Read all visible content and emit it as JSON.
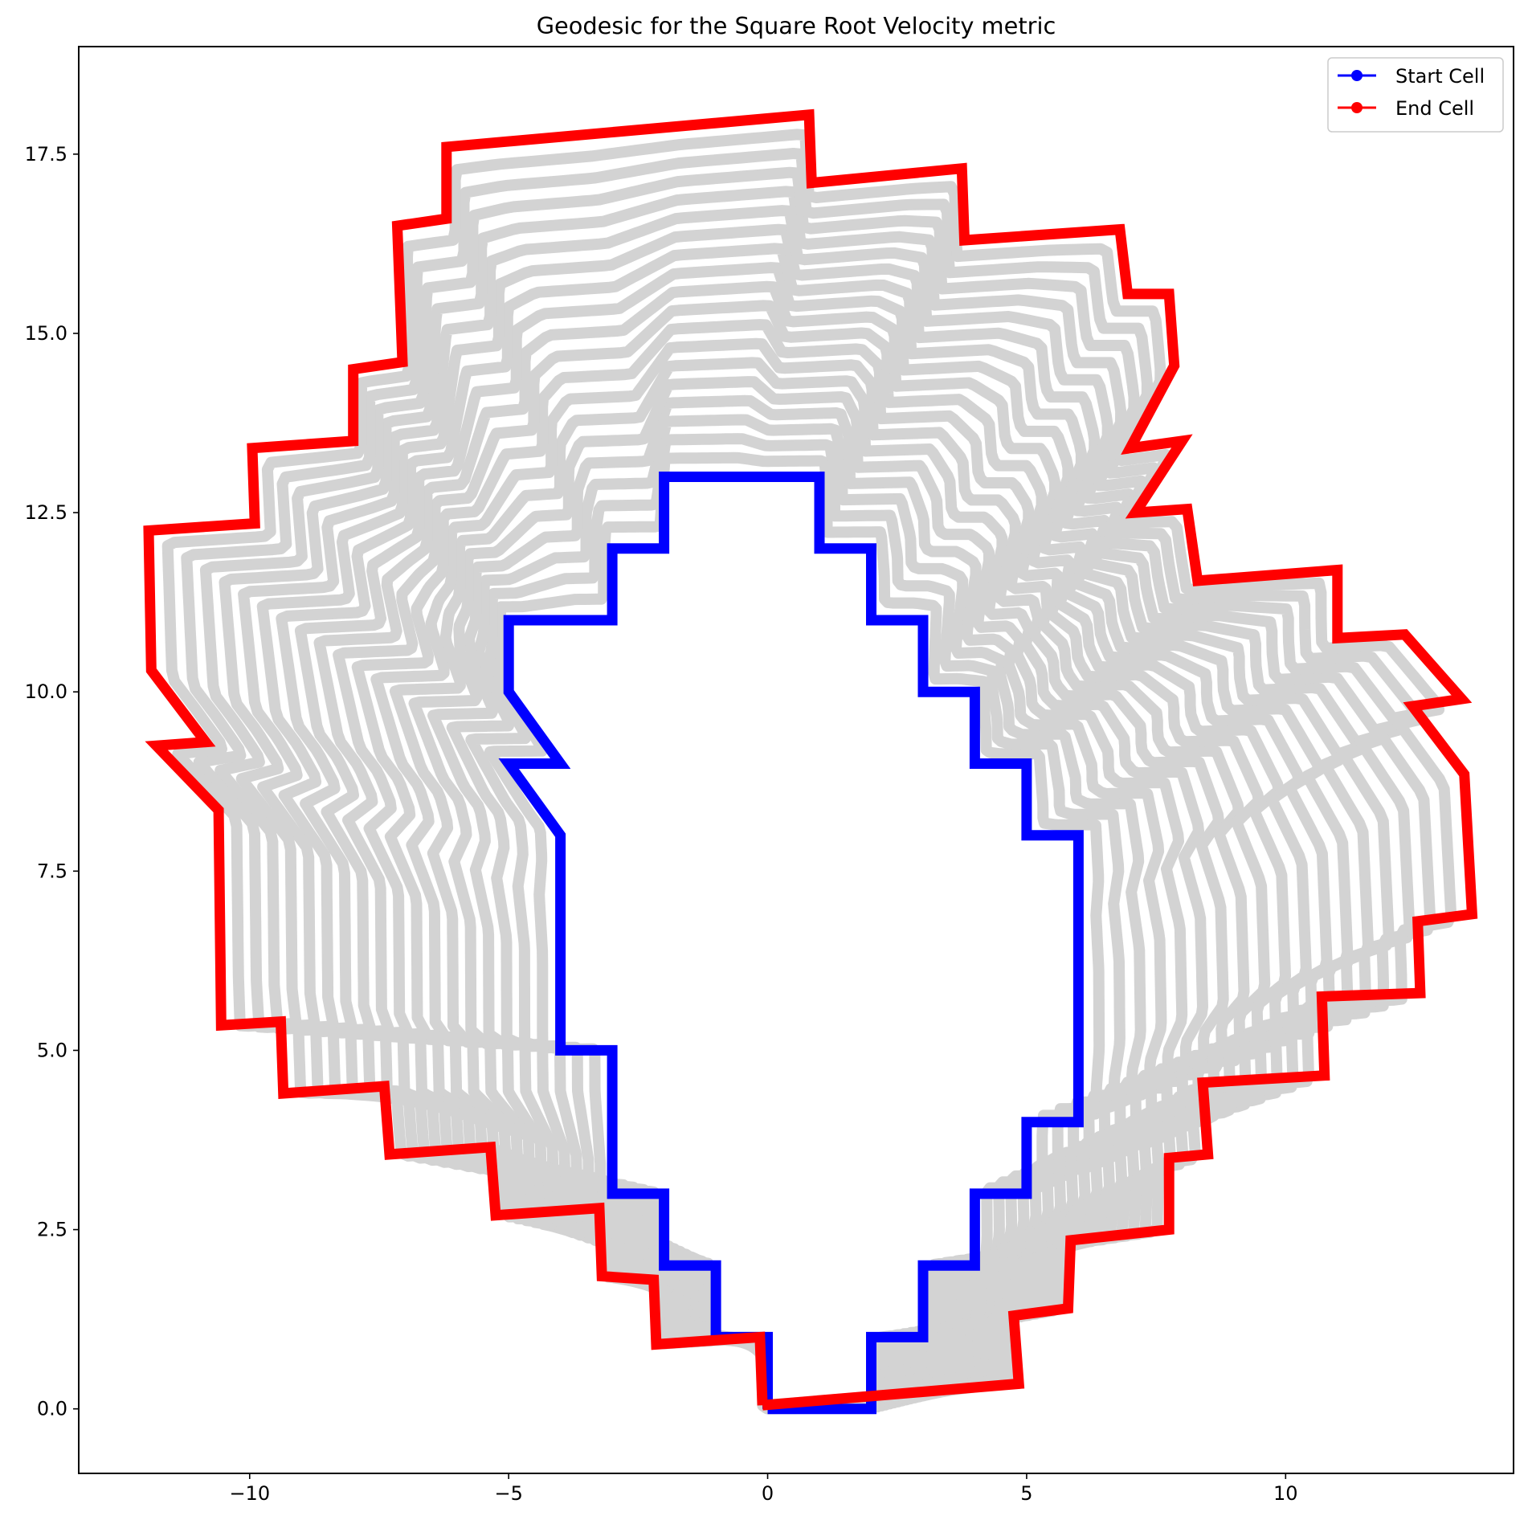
{
  "chart_data": {
    "type": "line",
    "title": "Geodesic for the Square Root Velocity metric",
    "xlabel": "",
    "ylabel": "",
    "xlim": [
      -13.3,
      14.4
    ],
    "ylim": [
      -0.9,
      19.0
    ],
    "x_ticks": [
      -10,
      -5,
      0,
      5,
      10
    ],
    "x_tick_labels": [
      "−10",
      "−5",
      "0",
      "5",
      "10"
    ],
    "y_ticks": [
      0.0,
      2.5,
      5.0,
      7.5,
      10.0,
      12.5,
      15.0,
      17.5
    ],
    "y_tick_labels": [
      "0.0",
      "2.5",
      "5.0",
      "7.5",
      "10.0",
      "12.5",
      "15.0",
      "17.5"
    ],
    "grid": false,
    "legend": {
      "position": "top-right",
      "entries": [
        "Start Cell",
        "End Cell"
      ]
    },
    "intermediate_count": 18,
    "colors": {
      "start": "#0000ff",
      "end": "#ff0000",
      "geodesic": "#d3d3d3"
    },
    "series": [
      {
        "name": "Start Cell",
        "color": "#0000ff",
        "points": [
          [
            0,
            0
          ],
          [
            2,
            0
          ],
          [
            2,
            1
          ],
          [
            3,
            1
          ],
          [
            3,
            2
          ],
          [
            4,
            2
          ],
          [
            4,
            3
          ],
          [
            5,
            3
          ],
          [
            5,
            4
          ],
          [
            6,
            4
          ],
          [
            6,
            8
          ],
          [
            5,
            8
          ],
          [
            5,
            9
          ],
          [
            4,
            9
          ],
          [
            4,
            10
          ],
          [
            3,
            10
          ],
          [
            3,
            11
          ],
          [
            2,
            11
          ],
          [
            2,
            12
          ],
          [
            1,
            12
          ],
          [
            1,
            13
          ],
          [
            -2,
            13
          ],
          [
            -2,
            12
          ],
          [
            -3,
            12
          ],
          [
            -3,
            11
          ],
          [
            -5,
            11
          ],
          [
            -5,
            10
          ],
          [
            -4,
            9
          ],
          [
            -5,
            9
          ],
          [
            -4,
            8
          ],
          [
            -4,
            5
          ],
          [
            -3,
            5
          ],
          [
            -3,
            3
          ],
          [
            -2,
            3
          ],
          [
            -2,
            2
          ],
          [
            -1,
            2
          ],
          [
            -1,
            1
          ],
          [
            0,
            1
          ],
          [
            0,
            0
          ]
        ]
      },
      {
        "name": "End Cell",
        "color": "#ff0000",
        "points": [
          [
            -0.1,
            0.05
          ],
          [
            4.85,
            0.35
          ],
          [
            4.75,
            1.3
          ],
          [
            5.8,
            1.4
          ],
          [
            5.85,
            2.35
          ],
          [
            7.75,
            2.5
          ],
          [
            7.75,
            3.5
          ],
          [
            8.5,
            3.55
          ],
          [
            8.4,
            4.55
          ],
          [
            10.75,
            4.65
          ],
          [
            10.7,
            5.75
          ],
          [
            12.6,
            5.8
          ],
          [
            12.55,
            6.8
          ],
          [
            13.6,
            6.9
          ],
          [
            13.45,
            8.85
          ],
          [
            12.45,
            9.8
          ],
          [
            13.4,
            9.9
          ],
          [
            12.3,
            10.8
          ],
          [
            11.0,
            10.75
          ],
          [
            11.0,
            11.7
          ],
          [
            8.3,
            11.55
          ],
          [
            8.1,
            12.55
          ],
          [
            7.1,
            12.5
          ],
          [
            8.0,
            13.5
          ],
          [
            7.0,
            13.4
          ],
          [
            7.85,
            14.55
          ],
          [
            7.75,
            15.55
          ],
          [
            6.95,
            15.55
          ],
          [
            6.8,
            16.45
          ],
          [
            3.8,
            16.3
          ],
          [
            3.75,
            17.3
          ],
          [
            0.85,
            17.1
          ],
          [
            0.8,
            18.05
          ],
          [
            -6.2,
            17.6
          ],
          [
            -6.2,
            16.6
          ],
          [
            -7.15,
            16.5
          ],
          [
            -7.05,
            14.6
          ],
          [
            -8.0,
            14.5
          ],
          [
            -8.0,
            13.5
          ],
          [
            -9.95,
            13.4
          ],
          [
            -9.9,
            12.35
          ],
          [
            -11.95,
            12.25
          ],
          [
            -11.9,
            10.3
          ],
          [
            -10.85,
            9.3
          ],
          [
            -11.8,
            9.25
          ],
          [
            -10.6,
            8.35
          ],
          [
            -10.55,
            5.35
          ],
          [
            -9.4,
            5.4
          ],
          [
            -9.35,
            4.4
          ],
          [
            -7.4,
            4.5
          ],
          [
            -7.3,
            3.55
          ],
          [
            -5.35,
            3.65
          ],
          [
            -5.25,
            2.7
          ],
          [
            -3.25,
            2.8
          ],
          [
            -3.2,
            1.85
          ],
          [
            -2.2,
            1.8
          ],
          [
            -2.15,
            0.9
          ],
          [
            -0.15,
            1.0
          ],
          [
            -0.1,
            0.05
          ]
        ]
      }
    ]
  }
}
